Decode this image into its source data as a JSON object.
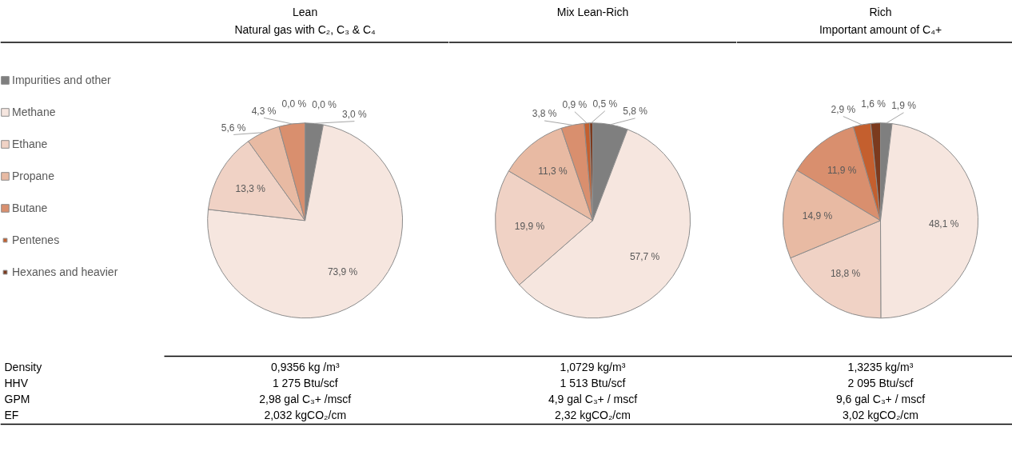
{
  "chart_data": [
    {
      "type": "pie",
      "title": "Lean",
      "subtitle": "Natural gas with C₂, C₃ & C₄",
      "legend": "left",
      "categories": [
        "Impurities and other",
        "Methane",
        "Ethane",
        "Propane",
        "Butane",
        "Pentenes",
        "Hexanes and heavier"
      ],
      "values": [
        3.0,
        73.9,
        13.3,
        5.6,
        4.3,
        0.0,
        0.0
      ],
      "value_labels": [
        "3,0 %",
        "73,9 %",
        "13,3 %",
        "5,6 %",
        "4,3 %",
        "0,0 %",
        "0,0 %"
      ],
      "colors": [
        "#7f7f7f",
        "#f6e6df",
        "#f0d2c5",
        "#e8baa3",
        "#d98f6e",
        "#c45f2e",
        "#7b3a1e"
      ]
    },
    {
      "type": "pie",
      "title": "Mix Lean-Rich",
      "categories": [
        null,
        null,
        null,
        null,
        null,
        null,
        null
      ],
      "values": [
        5.8,
        57.7,
        19.9,
        11.3,
        3.8,
        0.9,
        0.5
      ],
      "value_labels": [
        "5,8 %",
        "57,7 %",
        "19,9 %",
        "11,3 %",
        "3,8 %",
        "0,9 %",
        "0,5 %"
      ],
      "colors": [
        "#7f7f7f",
        "#f6e6df",
        "#f0d2c5",
        "#e8baa3",
        "#d98f6e",
        "#c45f2e",
        "#7b3a1e"
      ]
    },
    {
      "type": "pie",
      "title": "Rich",
      "subtitle": "Important amount of C₄+",
      "categories": [
        null,
        null,
        null,
        null,
        null,
        null,
        null
      ],
      "values": [
        1.9,
        48.1,
        18.8,
        14.9,
        11.9,
        2.9,
        1.6
      ],
      "value_labels": [
        "1,9 %",
        "48,1 %",
        "18,8 %",
        "14,9 %",
        "11,9 %",
        "2,9 %",
        "1,6 %"
      ],
      "colors": [
        "#7f7f7f",
        "#f6e6df",
        "#f0d2c5",
        "#e8baa3",
        "#d98f6e",
        "#c45f2e",
        "#7b3a1e"
      ]
    },
    {
      "type": "other",
      "annotations": [
        "Density",
        "0,9356 kg /m³",
        "1,0729 kg/m³",
        "1,3235 kg/m³",
        "HHV",
        "1 275 Btu/scf",
        "1 513 Btu/scf",
        "2 095 Btu/scf",
        "GPM",
        "2,98 gal C₃+ /mscf",
        "4,9 gal C₃+ / mscf",
        "9,6 gal C₃+ / mscf",
        "EF",
        "2,032 kgCO₂/cm",
        "2,32 kgCO₂/cm",
        "3,02 kgCO₂/cm"
      ]
    }
  ]
}
